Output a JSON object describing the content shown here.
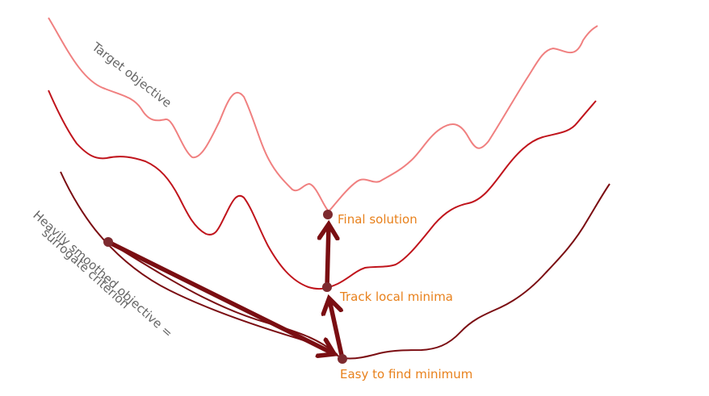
{
  "colors": {
    "target_curve": "#f08080",
    "middle_curve": "#c0141c",
    "smoothed_curve": "#7b0d12",
    "arrow": "#7a0e12",
    "point_fill": "#7d2a2f",
    "annotation_orange": "#e8811c",
    "annotation_gray": "#666666"
  },
  "labels": {
    "target_objective": "Target objective",
    "smoothed_line1": "Heavily smoothed objective =",
    "smoothed_line2": "surrogate criterion",
    "final_solution": "Final solution",
    "track_local_minima": "Track local minima",
    "easy_minimum": "Easy to find minimum"
  }
}
